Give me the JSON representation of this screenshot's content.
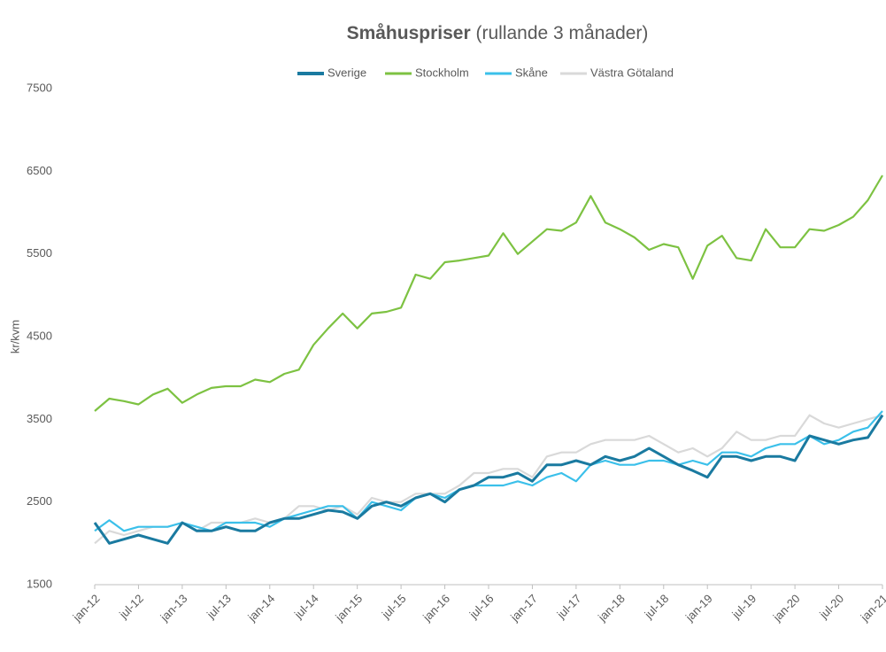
{
  "chart_data": {
    "type": "line",
    "title": "Småhuspriser",
    "subtitle": "(rullande 3 månader)",
    "y_label": "kr/kvm",
    "legend": "top",
    "ylim": [
      1500,
      7500
    ],
    "yticks": [
      1500,
      2500,
      3500,
      4500,
      5500,
      6500,
      7500
    ],
    "categories": [
      "jan-12",
      null,
      null,
      "jul-12",
      null,
      null,
      "jan-13",
      null,
      null,
      "jul-13",
      null,
      null,
      "jan-14",
      null,
      null,
      "jul-14",
      null,
      null,
      "jan-15",
      null,
      null,
      "jul-15",
      null,
      null,
      "jan-16",
      null,
      null,
      "jul-16",
      null,
      null,
      "jan-17",
      null,
      null,
      "jul-17",
      null,
      null,
      "jan-18",
      null,
      null,
      "jul-18",
      null,
      null,
      "jan-19",
      null,
      null,
      "jul-19",
      null,
      null,
      "jan-20",
      null,
      null,
      "jul-20",
      null,
      null,
      "jan-21"
    ],
    "series": [
      {
        "name": "Sverige",
        "color": "#1a7aa0",
        "values": [
          2250,
          2000,
          2050,
          2100,
          2050,
          2000,
          2250,
          2150,
          2150,
          2200,
          2150,
          2150,
          2250,
          2300,
          2300,
          2350,
          2400,
          2380,
          2300,
          2450,
          2500,
          2450,
          2550,
          2600,
          2500,
          2650,
          2700,
          2800,
          2800,
          2850,
          2750,
          2950,
          2950,
          3000,
          2950,
          3050,
          3000,
          3050,
          3150,
          3050,
          2950,
          2880,
          2800,
          3050,
          3050,
          3000,
          3050,
          3050,
          3000,
          3300,
          3250,
          3200,
          3250,
          3280,
          3550
        ]
      },
      {
        "name": "Stockholm",
        "color": "#7dc242",
        "values": [
          3600,
          3750,
          3720,
          3680,
          3800,
          3870,
          3700,
          3800,
          3880,
          3900,
          3900,
          3980,
          3950,
          4050,
          4100,
          4400,
          4600,
          4780,
          4600,
          4780,
          4800,
          4850,
          5250,
          5200,
          5400,
          5420,
          5450,
          5480,
          5750,
          5500,
          5650,
          5800,
          5780,
          5880,
          6200,
          5880,
          5800,
          5700,
          5550,
          5620,
          5580,
          5200,
          5600,
          5720,
          5450,
          5420,
          5800,
          5580,
          5580,
          5800,
          5780,
          5850,
          5950,
          6150,
          6450
        ]
      },
      {
        "name": "Skåne",
        "color": "#3bc0ea",
        "values": [
          2150,
          2280,
          2150,
          2200,
          2200,
          2200,
          2250,
          2200,
          2150,
          2250,
          2250,
          2250,
          2200,
          2300,
          2350,
          2400,
          2450,
          2450,
          2300,
          2500,
          2450,
          2400,
          2550,
          2600,
          2550,
          2650,
          2700,
          2700,
          2700,
          2750,
          2700,
          2800,
          2850,
          2750,
          2950,
          3000,
          2950,
          2950,
          3000,
          3000,
          2950,
          3000,
          2950,
          3100,
          3100,
          3050,
          3150,
          3200,
          3200,
          3300,
          3200,
          3250,
          3350,
          3400,
          3600
        ]
      },
      {
        "name": "Västra Götaland",
        "color": "#d9d9d9",
        "values": [
          2000,
          2150,
          2100,
          2150,
          2200,
          2200,
          2250,
          2150,
          2250,
          2250,
          2250,
          2300,
          2250,
          2300,
          2450,
          2450,
          2400,
          2450,
          2350,
          2550,
          2500,
          2500,
          2600,
          2600,
          2600,
          2700,
          2850,
          2850,
          2900,
          2900,
          2800,
          3050,
          3100,
          3100,
          3200,
          3250,
          3250,
          3250,
          3300,
          3200,
          3100,
          3150,
          3050,
          3150,
          3350,
          3250,
          3250,
          3300,
          3300,
          3550,
          3450,
          3400,
          3450,
          3500,
          3550
        ]
      }
    ]
  }
}
